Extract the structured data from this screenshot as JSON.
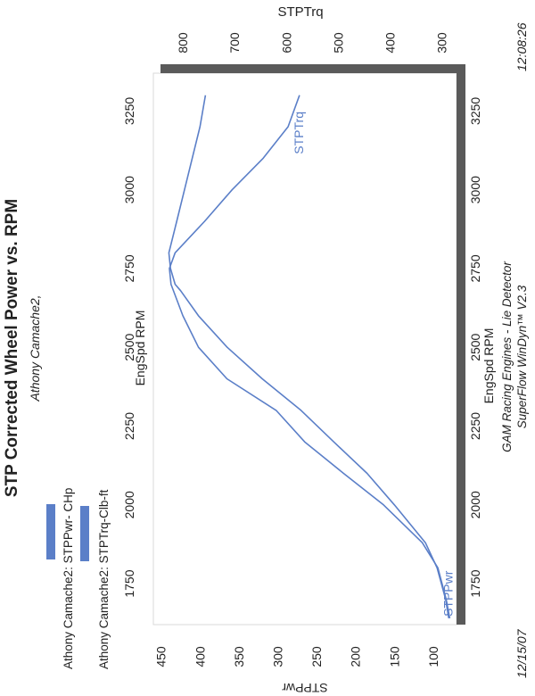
{
  "page": {
    "title": "STP Corrected Wheel Power vs. RPM",
    "subtitle": "Athony Camache2,",
    "date": "12/15/07",
    "time": "12:08:26",
    "footer_line1": "GAM Racing Engines - Lie Detector",
    "footer_line2": "SuperFlow WinDyn™ V2.3"
  },
  "chart_data": {
    "type": "line",
    "title": "STP Corrected Wheel Power vs. RPM",
    "xlabel": "EngSpd  RPM",
    "y_left_label": "STPPwr",
    "y_right_label": "STPTrq",
    "xlim": [
      1620,
      3370
    ],
    "x_ticks": [
      1750,
      2000,
      2250,
      2500,
      2750,
      3000,
      3250
    ],
    "y_left_lim": [
      70,
      460
    ],
    "y_left_ticks": [
      100,
      150,
      200,
      250,
      300,
      350,
      400,
      450
    ],
    "y_right_lim": [
      272,
      857
    ],
    "y_right_ticks": [
      300,
      400,
      500,
      600,
      700,
      800
    ],
    "grid": false,
    "legend_position": "left margin",
    "line_color": "#5b7fc8",
    "legend": [
      {
        "label": "Athony Camache2: STPPwr- CHp",
        "color": "#5b7fc8"
      },
      {
        "label": "Athony Camache2: STPTrq-Clb-ft",
        "color": "#5b7fc8"
      }
    ],
    "series": [
      {
        "name": "STPPwr",
        "axis": "left",
        "curve_label": "STPPwr",
        "x": [
          1640,
          1700,
          1800,
          1880,
          2000,
          2100,
          2200,
          2300,
          2400,
          2500,
          2600,
          2680,
          2700,
          2750,
          2800,
          2900,
          3000,
          3100,
          3200,
          3300
        ],
        "y": [
          80,
          84,
          95,
          110,
          150,
          185,
          228,
          270,
          320,
          365,
          402,
          425,
          432,
          438,
          440,
          430,
          420,
          410,
          400,
          393
        ]
      },
      {
        "name": "STPTrq",
        "axis": "right",
        "curve_label": "STPTrq",
        "x": [
          1640,
          1700,
          1800,
          1880,
          2000,
          2100,
          2200,
          2300,
          2400,
          2500,
          2600,
          2700,
          2750,
          2800,
          2900,
          3000,
          3100,
          3200,
          3300
        ],
        "y": [
          285,
          292,
          308,
          338,
          413,
          490,
          565,
          620,
          715,
          770,
          800,
          823,
          826,
          815,
          758,
          705,
          645,
          597,
          575
        ]
      }
    ]
  }
}
